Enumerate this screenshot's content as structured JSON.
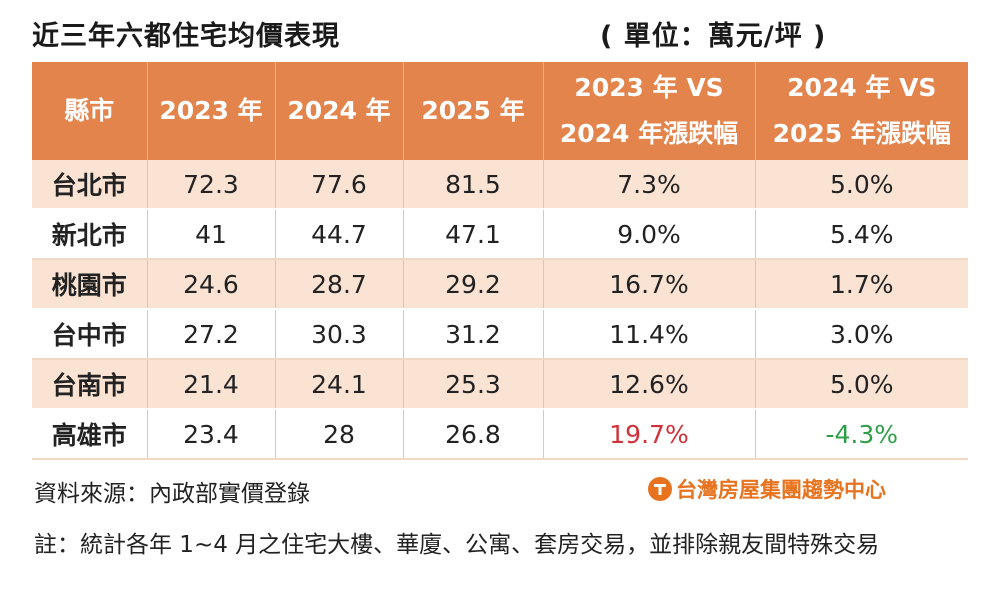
{
  "title": "近三年六都住宅均價表現",
  "unit": "( 單位：萬元/坪 )",
  "table": {
    "headers": [
      "縣市",
      "2023 年",
      "2024 年",
      "2025 年"
    ],
    "header_change1": [
      "2023 年 VS",
      "2024 年漲跌幅"
    ],
    "header_change2": [
      "2024 年 VS",
      "2025 年漲跌幅"
    ],
    "rows": [
      {
        "city": "台北市",
        "y2023": "72.3",
        "y2024": "77.6",
        "y2025": "81.5",
        "c1": "7.3%",
        "c2": "5.0%"
      },
      {
        "city": "新北市",
        "y2023": "41",
        "y2024": "44.7",
        "y2025": "47.1",
        "c1": "9.0%",
        "c2": "5.4%"
      },
      {
        "city": "桃園市",
        "y2023": "24.6",
        "y2024": "28.7",
        "y2025": "29.2",
        "c1": "16.7%",
        "c2": "1.7%"
      },
      {
        "city": "台中市",
        "y2023": "27.2",
        "y2024": "30.3",
        "y2025": "31.2",
        "c1": "11.4%",
        "c2": "3.0%"
      },
      {
        "city": "台南市",
        "y2023": "21.4",
        "y2024": "24.1",
        "y2025": "25.3",
        "c1": "12.6%",
        "c2": "5.0%"
      },
      {
        "city": "高雄市",
        "y2023": "23.4",
        "y2024": "28",
        "y2025": "26.8",
        "c1": "19.7%",
        "c2": "-4.3%"
      }
    ]
  },
  "colors": {
    "header": "#e3844d",
    "highlight_up": "#d0313a",
    "highlight_down": "#2f9e49",
    "brand": "#e8731f"
  },
  "source": "資料來源：內政部實價登錄",
  "brand": {
    "name": "台灣房屋集團趨勢中心",
    "icon": "taiwan-realty-logo-icon"
  },
  "note": "註：統計各年 1~4 月之住宅大樓、華廈、公寓、套房交易，並排除親友間特殊交易"
}
